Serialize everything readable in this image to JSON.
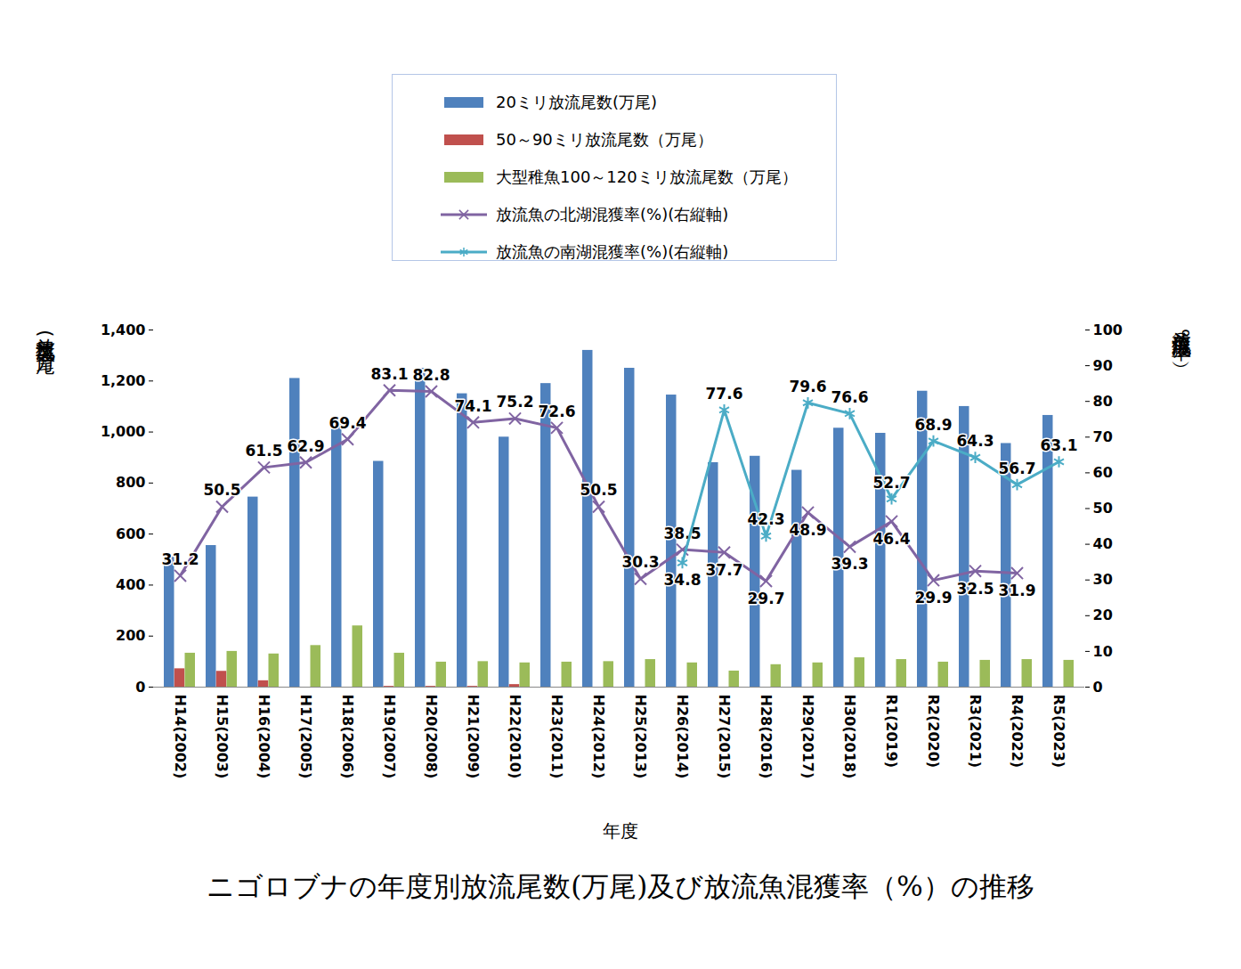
{
  "chart_data": {
    "type": "bar",
    "title": "ニゴロブナの年度別放流尾数(万尾)及び放流魚混獲率（%）の推移",
    "x_label": "年度",
    "y_label": "放流尾数(万尾)",
    "y2_label": "放流魚混獲率（%）",
    "categories": [
      "H14(2002)",
      "H15(2003)",
      "H16(2004)",
      "H17(2005)",
      "H18(2006)",
      "H19(2007)",
      "H20(2008)",
      "H21(2009)",
      "H22(2010)",
      "H23(2011)",
      "H24(2012)",
      "H25(2013)",
      "H26(2014)",
      "H27(2015)",
      "H28(2016)",
      "H29(2017)",
      "H30(2018)",
      "R1(2019)",
      "R2(2020)",
      "R3(2021)",
      "R4(2022)",
      "R5(2023)"
    ],
    "series": [
      {
        "name": "20ミリ放流尾数(万尾)",
        "type": "bar",
        "color": "#4f81bd",
        "values": [
          510,
          555,
          745,
          1210,
          1045,
          885,
          1250,
          1150,
          980,
          1190,
          1320,
          1250,
          1145,
          880,
          905,
          850,
          1015,
          995,
          1160,
          1100,
          955,
          1065
        ]
      },
      {
        "name": "50～90ミリ放流尾数（万尾）",
        "type": "bar",
        "color": "#c0504d",
        "values": [
          72,
          62,
          25,
          0,
          0,
          3,
          3,
          3,
          10,
          0,
          0,
          0,
          0,
          0,
          0,
          0,
          0,
          0,
          0,
          0,
          0,
          0
        ]
      },
      {
        "name": "大型稚魚100～120ミリ放流尾数（万尾）",
        "type": "bar",
        "color": "#9bbb59",
        "values": [
          133,
          140,
          130,
          163,
          240,
          133,
          98,
          100,
          95,
          98,
          100,
          108,
          95,
          63,
          88,
          95,
          115,
          108,
          98,
          105,
          108,
          105
        ]
      },
      {
        "name": "放流魚の北湖混獲率(%)(右縦軸)",
        "type": "line",
        "axis": "y2",
        "color": "#8064a2",
        "marker": "times",
        "data_labels": true,
        "values": [
          31.2,
          50.5,
          61.5,
          62.9,
          69.4,
          83.1,
          82.8,
          74.1,
          75.2,
          72.6,
          50.5,
          30.3,
          38.5,
          37.7,
          29.7,
          48.9,
          39.3,
          46.4,
          29.9,
          32.5,
          31.9,
          null
        ]
      },
      {
        "name": "放流魚の南湖混獲率(%)(右縦軸)",
        "type": "line",
        "axis": "y2",
        "color": "#4bacc6",
        "marker": "asterisk",
        "data_labels": true,
        "values": [
          null,
          null,
          null,
          null,
          null,
          null,
          null,
          null,
          null,
          null,
          null,
          null,
          34.8,
          77.6,
          42.3,
          79.6,
          76.6,
          52.7,
          68.9,
          64.3,
          56.7,
          63.1
        ]
      }
    ],
    "ylim": [
      0,
      1400
    ],
    "yticks": [
      0,
      200,
      400,
      600,
      800,
      {
        "value": 1000,
        "label": "1,000"
      },
      {
        "value": 1200,
        "label": "1,200"
      },
      {
        "value": 1400,
        "label": "1,400"
      }
    ],
    "y2lim": [
      0,
      100
    ],
    "y2ticks": [
      0,
      10,
      20,
      30,
      40,
      50,
      60,
      70,
      80,
      90,
      100
    ],
    "grid": false,
    "legend": "top"
  }
}
